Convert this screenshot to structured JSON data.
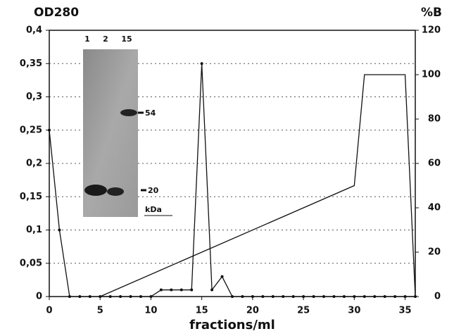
{
  "chart_data": {
    "type": "line",
    "y_label": "OD280",
    "y2_label": "%B",
    "x_label": "fractions/ml",
    "xlim": [
      0,
      36
    ],
    "xticks": [
      0,
      5,
      10,
      15,
      20,
      25,
      30,
      35
    ],
    "ylim": [
      0,
      0.4
    ],
    "yticks": [
      0,
      {
        "value": 0.05,
        "label": "0,05"
      },
      {
        "value": 0.1,
        "label": "0,1"
      },
      {
        "value": 0.15,
        "label": "0,15"
      },
      {
        "value": 0.2,
        "label": "0,2"
      },
      {
        "value": 0.25,
        "label": "0,25"
      },
      {
        "value": 0.3,
        "label": "0,3"
      },
      {
        "value": 0.35,
        "label": "0,35"
      },
      {
        "value": 0.4,
        "label": "0,4"
      }
    ],
    "y2lim": [
      0,
      120
    ],
    "y2ticks": [
      0,
      20,
      40,
      60,
      80,
      100,
      120
    ],
    "grid": true,
    "series": [
      {
        "color": "#111111",
        "markers": true,
        "x": [
          0,
          1,
          2,
          3,
          4,
          5,
          6,
          7,
          8,
          9,
          10,
          11,
          12,
          13,
          14,
          15,
          16,
          17,
          18,
          19,
          20,
          21,
          22,
          23,
          24,
          25,
          26,
          27,
          28,
          29,
          30,
          31,
          32,
          33,
          34,
          35,
          36
        ],
        "values": [
          0.25,
          0.1,
          0,
          0,
          0,
          0,
          0,
          0,
          0,
          0,
          0,
          0.01,
          0.01,
          0.01,
          0.01,
          0.35,
          0.01,
          0.03,
          0,
          0,
          0,
          0,
          0,
          0,
          0,
          0,
          0,
          0,
          0,
          0,
          0,
          0,
          0,
          0,
          0,
          0,
          0
        ]
      },
      {
        "color": "#111111",
        "markers": false,
        "axis": "y2",
        "x": [
          5,
          30,
          31,
          35,
          36
        ],
        "values": [
          0,
          50,
          100,
          100,
          0
        ]
      }
    ],
    "inset_labels": [
      "1",
      "2",
      "15",
      "54",
      "20",
      "kDa"
    ]
  }
}
